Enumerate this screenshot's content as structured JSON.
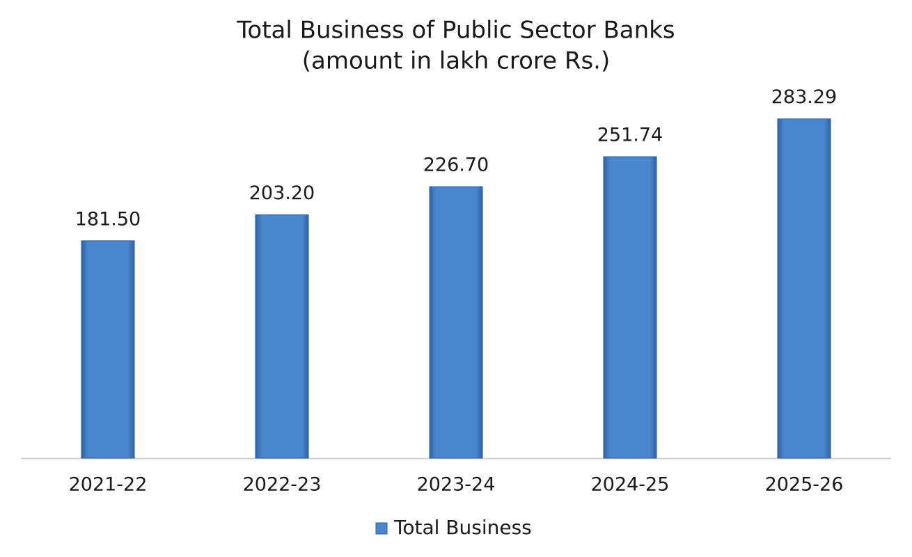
{
  "chart_data": {
    "type": "bar",
    "title": "Total Business of Public Sector Banks",
    "subtitle": "(amount in lakh crore Rs.)",
    "categories": [
      "2021-22",
      "2022-23",
      "2023-24",
      "2024-25",
      "2025-26"
    ],
    "series": [
      {
        "name": "Total Business",
        "color": "#4a86c8",
        "values": [
          181.5,
          203.2,
          226.7,
          251.74,
          283.29
        ],
        "value_labels": [
          "181.50",
          "203.20",
          "226.70",
          "251.74",
          "283.29"
        ]
      }
    ],
    "ylim": [
      0,
      300
    ],
    "grid": false,
    "legend": "bottom"
  }
}
